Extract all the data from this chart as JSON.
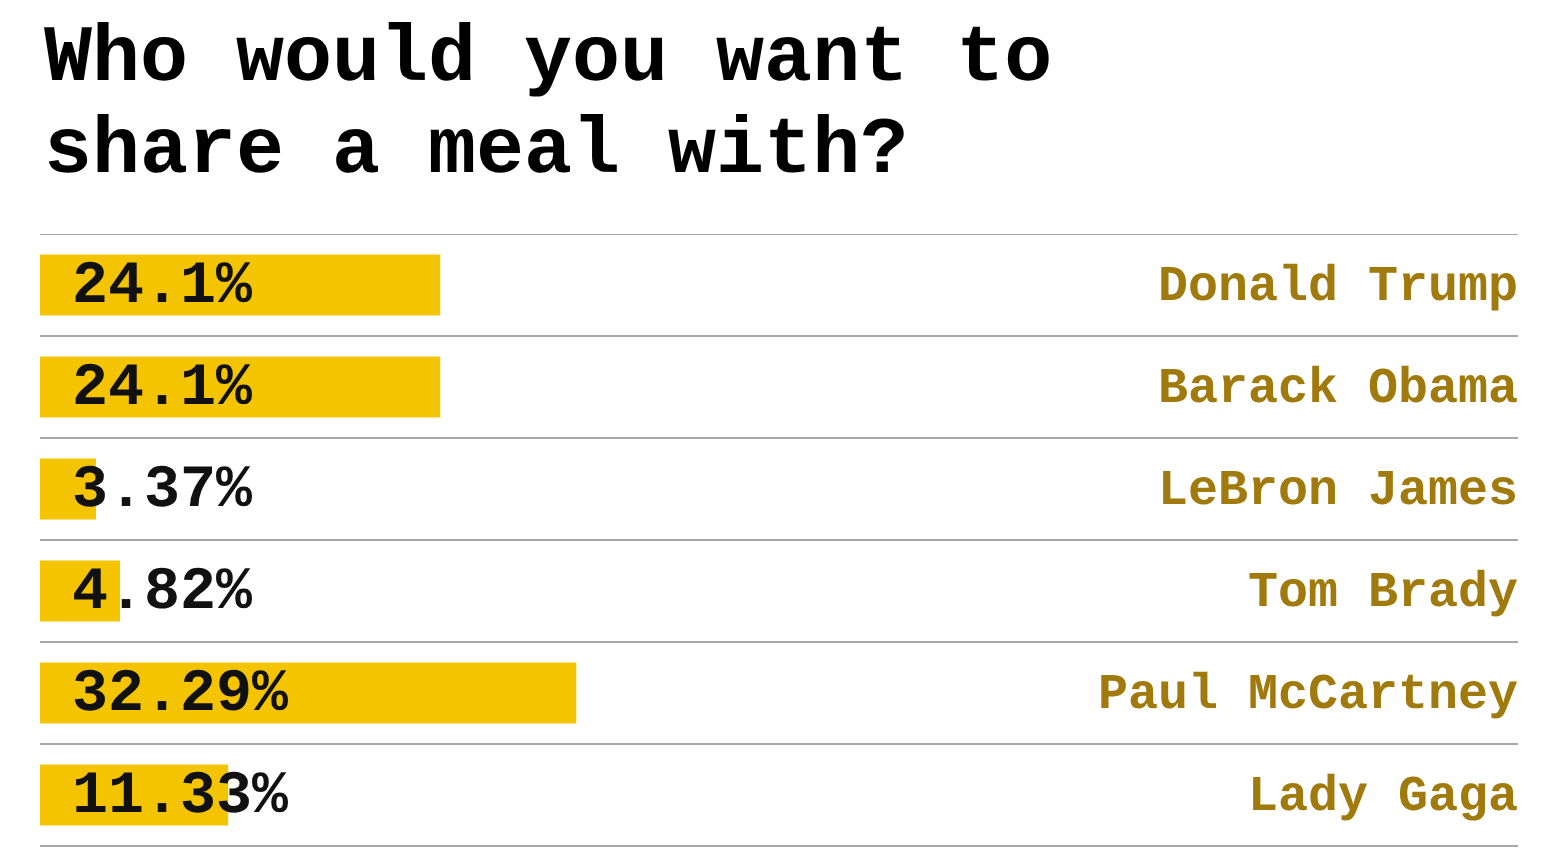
{
  "chart_data": {
    "type": "bar",
    "orientation": "horizontal",
    "title": "Who would you want to share a meal with?",
    "categories": [
      "Donald Trump",
      "Barack Obama",
      "LeBron James",
      "Tom Brady",
      "Paul McCartney",
      "Lady Gaga"
    ],
    "values": [
      24.1,
      24.1,
      3.37,
      4.82,
      32.29,
      11.33
    ],
    "value_labels": [
      "24.1%",
      "24.1%",
      "3.37%",
      "4.82%",
      "32.29%",
      "11.33%"
    ],
    "color": "#f5c400",
    "xlim": [
      0,
      89
    ],
    "grid": "y",
    "legend": false
  }
}
